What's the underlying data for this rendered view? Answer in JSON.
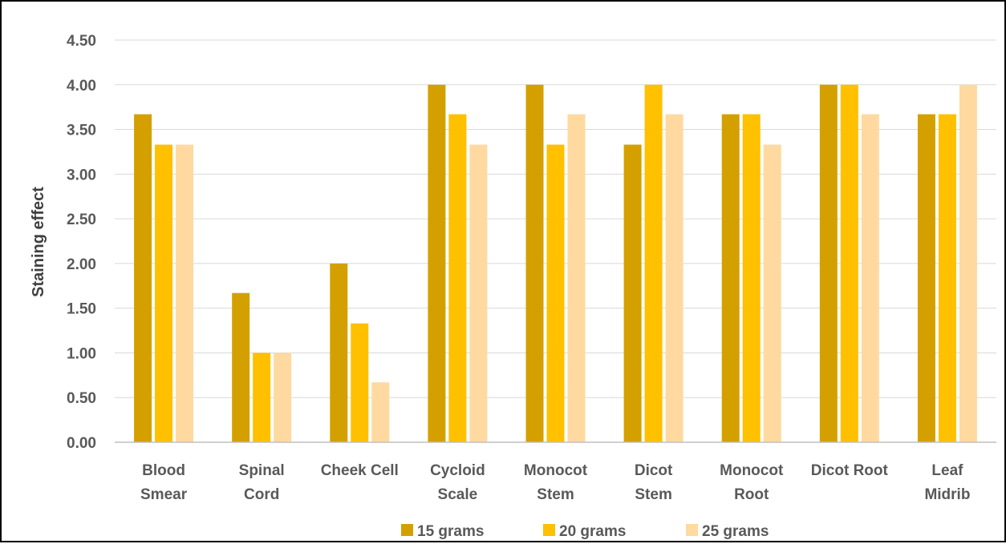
{
  "chart_data": {
    "type": "bar",
    "ylabel": "Staining effect",
    "ylim": [
      0,
      4.5
    ],
    "y_ticks": [
      "0.00",
      "0.50",
      "1.00",
      "1.50",
      "2.00",
      "2.50",
      "3.00",
      "3.50",
      "4.00",
      "4.50"
    ],
    "grid": "horizontal",
    "legend_position": "bottom",
    "categories": [
      [
        "Blood",
        "Smear"
      ],
      [
        "Spinal",
        "Cord"
      ],
      [
        "Cheek Cell"
      ],
      [
        "Cycloid",
        "Scale"
      ],
      [
        "Monocot",
        "Stem"
      ],
      [
        "Dicot",
        "Stem"
      ],
      [
        "Monocot",
        "Root"
      ],
      [
        "Dicot Root"
      ],
      [
        "Leaf",
        "Midrib"
      ]
    ],
    "series": [
      {
        "name": "15 grams",
        "color": "#D4A000",
        "values": [
          3.67,
          1.67,
          2.0,
          4.0,
          4.0,
          3.33,
          3.67,
          4.0,
          3.67
        ]
      },
      {
        "name": "20 grams",
        "color": "#FFC000",
        "values": [
          3.33,
          1.0,
          1.33,
          3.67,
          3.33,
          4.0,
          3.67,
          4.0,
          3.67
        ]
      },
      {
        "name": "25 grams",
        "color": "#FFD9A0",
        "values": [
          3.33,
          1.0,
          0.67,
          3.33,
          3.67,
          3.67,
          3.33,
          3.67,
          4.0
        ]
      }
    ]
  }
}
